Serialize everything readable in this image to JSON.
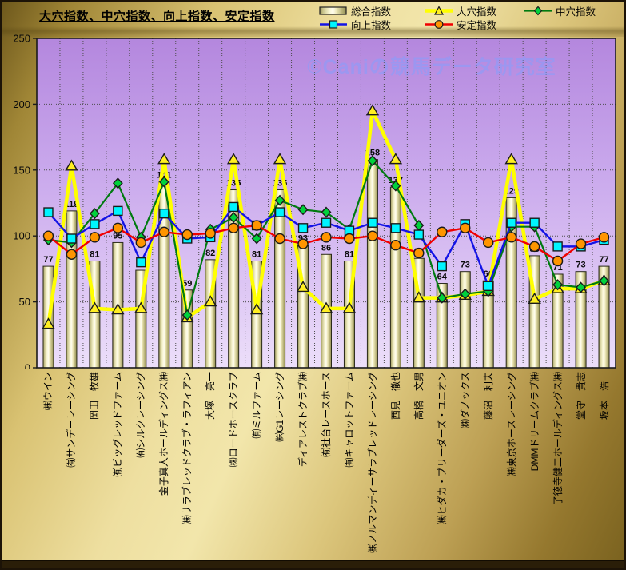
{
  "title": "大穴指数、中穴指数、向上指数、安定指数",
  "watermark": {
    "text": "©Caniの競馬データ研究室",
    "color": "#7f9fff"
  },
  "y_axis": {
    "min": 0,
    "max": 250,
    "ticks": [
      0,
      50,
      100,
      150,
      200,
      250
    ]
  },
  "plot": {
    "background_top": "#b487de",
    "background_bottom": "#ecdffa",
    "gridline_color": "#4d4d4d"
  },
  "chart_data": {
    "type": "bar",
    "title": "大穴指数、中穴指数、向上指数、安定指数",
    "xlabel": "",
    "ylabel": "",
    "ylim": [
      0,
      250
    ],
    "grid": true,
    "legend_position": "top-right",
    "categories": [
      "㈱ウイン",
      "㈲サンデーレーシング",
      "岡田　牧雄",
      "㈲ビッグレッドファーム",
      "㈲シルクレーシング",
      "金子真人ホールディングス㈱",
      "㈱サラブレッドクラブ・ラフィアン",
      "大塚　亮一",
      "㈱ロードホースクラブ",
      "㈲ミルファーム",
      "㈱G1レーシング",
      "ディアレストクラブ㈱",
      "㈲社台レースホース",
      "㈲キャロットファーム",
      "㈱ノルマンディーサラブレッドレーシング",
      "西見　徹也",
      "高橋　文男",
      "㈱ヒダカ・ブリーダーズ・ユニオン",
      "㈱ダノックス",
      "藤沼　利夫",
      "㈱東京ホースレーシング",
      "DMMドリームクラブ㈱",
      "了徳寺健二ホールディングス㈱",
      "堂守　貴志",
      "坂本　浩一"
    ],
    "series": [
      {
        "name": "総合指数",
        "type": "bar",
        "color": "#f7f4cf",
        "marker": "bar",
        "values": [
          77,
          119,
          81,
          95,
          74,
          141,
          59,
          82,
          135,
          81,
          135,
          93,
          86,
          81,
          158,
          137,
          83,
          64,
          73,
          66,
          129,
          85,
          71,
          73,
          77
        ],
        "labels_shown": true
      },
      {
        "name": "大穴指数",
        "type": "line",
        "color": "#ffff00",
        "marker": "triangle",
        "marker_color": "#ffee22",
        "line_width": 4.5,
        "values": [
          33,
          153,
          45,
          44,
          45,
          158,
          38,
          50,
          158,
          44,
          158,
          61,
          45,
          45,
          195,
          158,
          53,
          53,
          55,
          58,
          158,
          52,
          60,
          60,
          66
        ]
      },
      {
        "name": "中穴指数",
        "type": "line",
        "color": "#007a10",
        "marker": "diamond",
        "marker_color": "#00d23c",
        "line_width": 2.2,
        "values": [
          97,
          95,
          117,
          140,
          99,
          141,
          40,
          105,
          114,
          98,
          127,
          120,
          118,
          105,
          157,
          138,
          108,
          53,
          56,
          58,
          107,
          107,
          63,
          61,
          66
        ]
      },
      {
        "name": "向上指数",
        "type": "line",
        "color": "#1414e6",
        "marker": "square",
        "marker_color": "#00f5ff",
        "line_width": 2.4,
        "values": [
          118,
          98,
          109,
          119,
          80,
          117,
          98,
          99,
          122,
          108,
          118,
          106,
          110,
          104,
          110,
          106,
          101,
          77,
          109,
          62,
          110,
          110,
          92,
          92,
          97
        ]
      },
      {
        "name": "安定指数",
        "type": "line",
        "color": "#f00000",
        "marker": "circle",
        "marker_color": "#ff9500",
        "line_width": 2.4,
        "values": [
          100,
          86,
          99,
          106,
          95,
          103,
          101,
          102,
          106,
          108,
          98,
          94,
          99,
          98,
          100,
          93,
          87,
          103,
          106,
          95,
          99,
          92,
          81,
          94,
          99
        ]
      }
    ]
  }
}
